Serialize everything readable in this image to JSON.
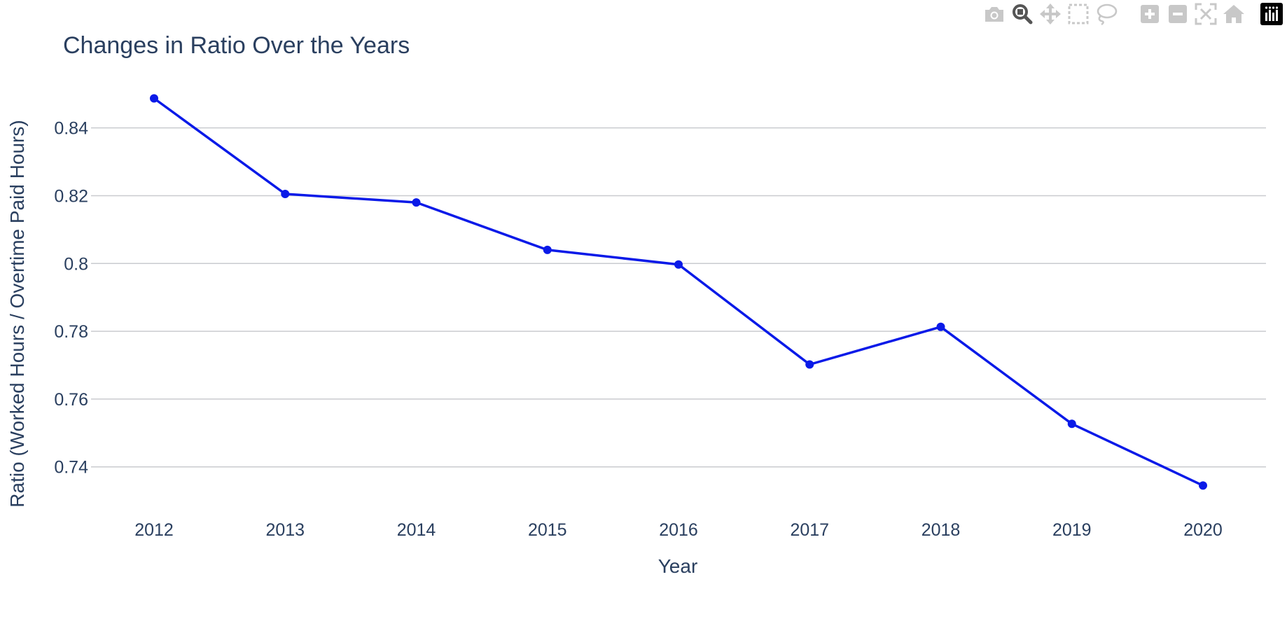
{
  "toolbar": {
    "buttons": [
      {
        "name": "camera-icon",
        "title": "Download plot as a png",
        "active": false
      },
      {
        "name": "zoom-icon",
        "title": "Zoom",
        "active": true
      },
      {
        "name": "pan-icon",
        "title": "Pan",
        "active": false
      },
      {
        "name": "box-select-icon",
        "title": "Box Select",
        "active": false
      },
      {
        "name": "lasso-select-icon",
        "title": "Lasso Select",
        "active": false
      },
      {
        "name": "zoom-in-icon",
        "title": "Zoom in",
        "active": false
      },
      {
        "name": "zoom-out-icon",
        "title": "Zoom out",
        "active": false
      },
      {
        "name": "autoscale-icon",
        "title": "Autoscale",
        "active": false
      },
      {
        "name": "reset-axes-icon",
        "title": "Reset axes",
        "active": false
      }
    ],
    "logo_icon": "plotly-logo-icon",
    "icon_color": "#c8c8c8",
    "active_icon_color": "#555555"
  },
  "chart_data": {
    "type": "line",
    "title": "Changes in Ratio Over the Years",
    "xlabel": "Year",
    "ylabel": "Ratio (Worked Hours / Overtime Paid Hours)",
    "x": [
      2012,
      2013,
      2014,
      2015,
      2016,
      2017,
      2018,
      2019,
      2020
    ],
    "x_tick_labels": [
      "2012",
      "2013",
      "2014",
      "2015",
      "2016",
      "2017",
      "2018",
      "2019",
      "2020"
    ],
    "series": [
      {
        "values": [
          0.8487,
          0.8205,
          0.818,
          0.804,
          0.7997,
          0.7702,
          0.7813,
          0.7527,
          0.7345
        ],
        "color": "#0a1ae8",
        "mode": "lines+markers"
      }
    ],
    "yticks": [
      0.74,
      0.76,
      0.78,
      0.8,
      0.82,
      0.84
    ],
    "y_tick_labels": [
      "0.74",
      "0.76",
      "0.78",
      "0.8",
      "0.82",
      "0.84"
    ],
    "ylim": [
      0.729,
      0.855
    ],
    "grid": true,
    "legend": false
  },
  "colors": {
    "text": "#2a3f5f",
    "grid": "#c9cbcf",
    "background": "#ffffff",
    "line": "#0a1ae8"
  }
}
